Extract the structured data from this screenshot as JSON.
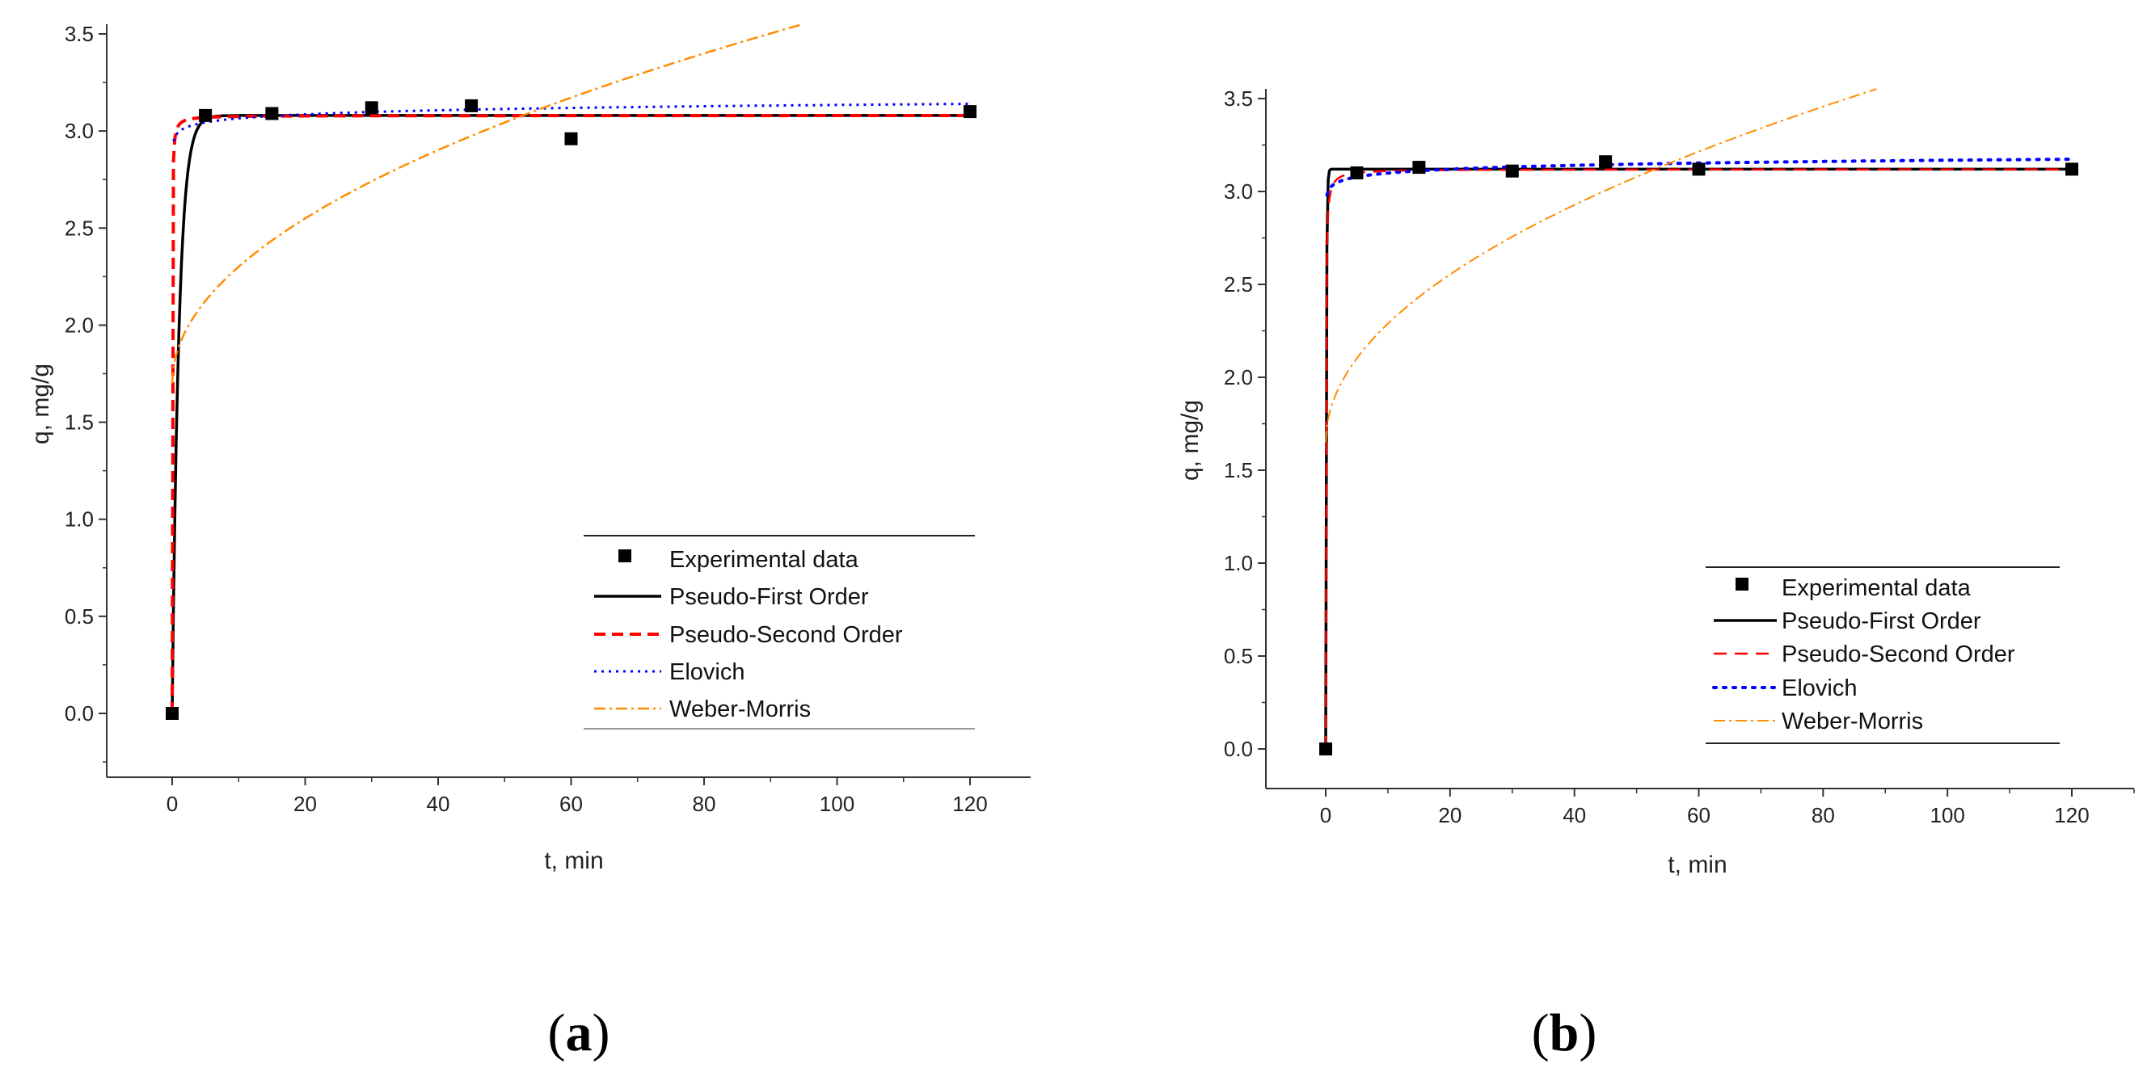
{
  "chart_data": [
    {
      "panel": "a",
      "panel_label": {
        "open": "(",
        "letter": "a",
        "close": ")"
      },
      "type": "line",
      "xlabel": "t, min",
      "ylabel": "q, mg/g",
      "xlim": [
        -10,
        130
      ],
      "ylim": [
        -0.3,
        3.5
      ],
      "xticks": [
        0,
        20,
        40,
        60,
        80,
        100,
        120
      ],
      "yticks": [
        0.0,
        0.5,
        1.0,
        1.5,
        2.0,
        2.5,
        3.0,
        3.5
      ],
      "ytick_labels": [
        "0.0",
        "0.5",
        "1.0",
        "1.5",
        "2.0",
        "2.5",
        "3.0",
        "3.5"
      ],
      "xtick_labels": [
        "0",
        "20",
        "40",
        "60",
        "80",
        "100",
        "120"
      ],
      "legend_position": "lower-right",
      "series": [
        {
          "name": "Experimental data",
          "kind": "scatter",
          "color": "#000000",
          "x": [
            0,
            5,
            15,
            30,
            45,
            60,
            120
          ],
          "y": [
            0.0,
            3.08,
            3.09,
            3.12,
            3.13,
            2.96,
            3.1
          ]
        },
        {
          "name": "Pseudo-First Order",
          "kind": "pfo",
          "color": "#000000",
          "qe": 3.08,
          "k1": 1.0
        },
        {
          "name": "Pseudo-Second Order",
          "kind": "pso",
          "color": "#ff0000",
          "qe": 3.08,
          "k2": 20.0
        },
        {
          "name": "Elovich",
          "kind": "elovich",
          "color": "#0000ff",
          "a": 2.996,
          "b": 0.03
        },
        {
          "name": "Weber-Morris",
          "kind": "wm",
          "color": "#ff8c00",
          "kid": 0.19,
          "C": 1.7
        }
      ]
    },
    {
      "panel": "b",
      "panel_label": {
        "open": "(",
        "letter": "b",
        "close": ")"
      },
      "type": "line",
      "xlabel": "t, min",
      "ylabel": "q, mg/g",
      "xlim": [
        -10,
        130
      ],
      "ylim": [
        -0.2,
        3.5
      ],
      "xticks": [
        0,
        20,
        40,
        60,
        80,
        100,
        120
      ],
      "yticks": [
        0.0,
        0.5,
        1.0,
        1.5,
        2.0,
        2.5,
        3.0,
        3.5
      ],
      "ytick_labels": [
        "0.0",
        "0.5",
        "1.0",
        "1.5",
        "2.0",
        "2.5",
        "3.0",
        "3.5"
      ],
      "xtick_labels": [
        "0",
        "20",
        "40",
        "60",
        "80",
        "100",
        "120"
      ],
      "legend_position": "lower-right",
      "series": [
        {
          "name": "Experimental data",
          "kind": "scatter",
          "color": "#000000",
          "x": [
            0,
            5,
            15,
            30,
            45,
            60,
            120
          ],
          "y": [
            0.0,
            3.1,
            3.13,
            3.11,
            3.16,
            3.12,
            3.12
          ]
        },
        {
          "name": "Pseudo-First Order",
          "kind": "pfo",
          "color": "#000000",
          "qe": 3.12,
          "k1": 10.0
        },
        {
          "name": "Pseudo-Second Order",
          "kind": "pso",
          "color": "#ff0000",
          "qe": 3.12,
          "k2": 10.0
        },
        {
          "name": "Elovich",
          "kind": "elovich",
          "color": "#0000ff",
          "a": 3.03,
          "b": 0.03
        },
        {
          "name": "Weber-Morris",
          "kind": "wm",
          "color": "#ff8c00",
          "kid": 0.202,
          "C": 1.65
        }
      ]
    }
  ]
}
